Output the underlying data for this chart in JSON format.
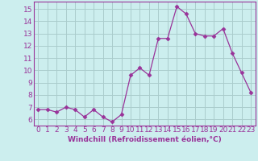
{
  "x": [
    0,
    1,
    2,
    3,
    4,
    5,
    6,
    7,
    8,
    9,
    10,
    11,
    12,
    13,
    14,
    15,
    16,
    17,
    18,
    19,
    20,
    21,
    22,
    23
  ],
  "y": [
    6.8,
    6.8,
    6.6,
    7.0,
    6.8,
    6.2,
    6.8,
    6.2,
    5.8,
    6.4,
    9.6,
    10.2,
    9.6,
    12.6,
    12.6,
    15.2,
    14.6,
    13.0,
    12.8,
    12.8,
    13.4,
    11.4,
    9.8,
    8.2
  ],
  "line_color": "#993399",
  "marker": "D",
  "marker_size": 2.5,
  "bg_color": "#cceeee",
  "grid_color": "#aacccc",
  "ylabel_ticks": [
    6,
    7,
    8,
    9,
    10,
    11,
    12,
    13,
    14,
    15
  ],
  "ylim": [
    5.5,
    15.6
  ],
  "xlim": [
    -0.5,
    23.5
  ],
  "xlabel": "Windchill (Refroidissement éolien,°C)",
  "xlabel_fontsize": 6.5,
  "tick_fontsize": 6.5
}
